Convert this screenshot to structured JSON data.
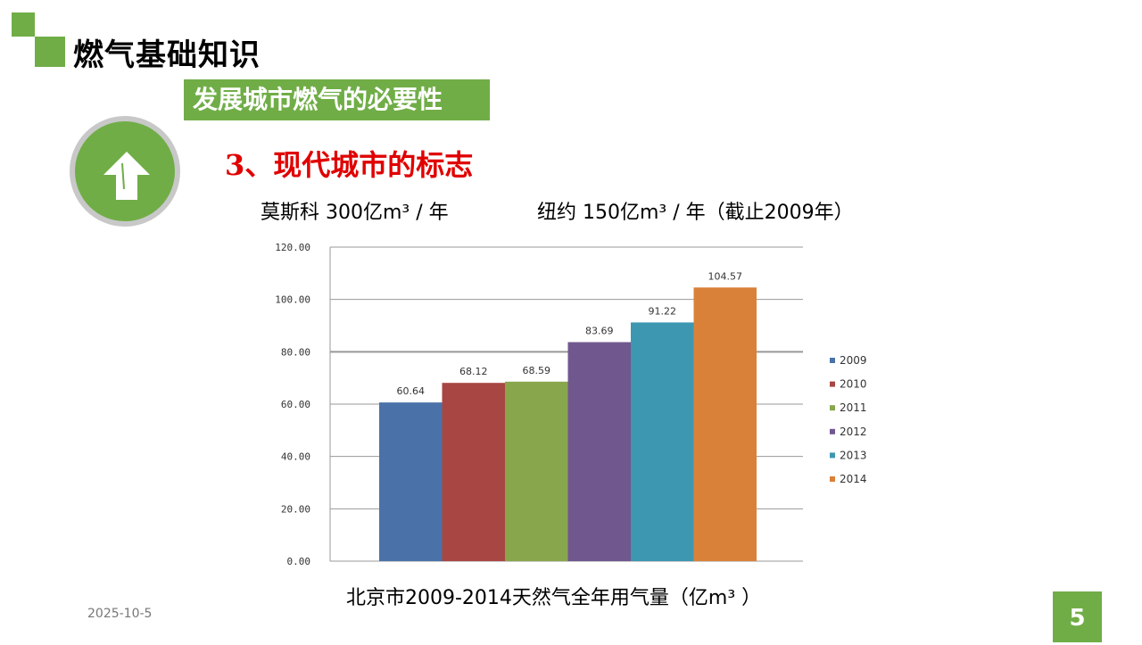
{
  "header": {
    "title": "燃气基础知识",
    "subtitle": "发展城市燃气的必要性"
  },
  "icon": "up-arrow-icon",
  "heading": "3、现代城市的标志",
  "info": {
    "moscow": "莫斯科 300亿m³ / 年",
    "newyork": "纽约 150亿m³ / 年（截止2009年）"
  },
  "chart_data": {
    "type": "bar",
    "title": "北京市2009-2014天然气全年用气量（亿m³ ）",
    "categories": [
      "2009",
      "2010",
      "2011",
      "2012",
      "2013",
      "2014"
    ],
    "values": [
      60.64,
      68.12,
      68.59,
      83.69,
      91.22,
      104.57
    ],
    "value_labels": [
      "60.64",
      "68.12",
      "68.59",
      "83.69",
      "91.22",
      "104.57"
    ],
    "colors": [
      "#4a72a8",
      "#a84644",
      "#88a64c",
      "#70588f",
      "#3e97b0",
      "#da8139"
    ],
    "ylim": [
      0,
      120
    ],
    "yticks": [
      "0.00",
      "20.00",
      "40.00",
      "60.00",
      "80.00",
      "100.00",
      "120.00"
    ],
    "legend_position": "right",
    "grid": true
  },
  "footer": {
    "date": "2025-10-5",
    "page": "5"
  }
}
